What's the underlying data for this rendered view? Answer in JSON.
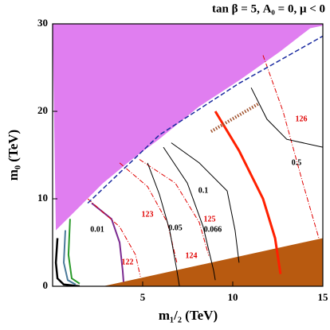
{
  "chart_data": {
    "type": "contour",
    "title": "tan β = 5, A₀ = 0, μ < 0",
    "x_label": "m₁/₂ (TeV)",
    "y_label": "m₀ (TeV)",
    "xlim": [
      0,
      15
    ],
    "ylim": [
      0,
      30
    ],
    "xticks": [
      5,
      10,
      15
    ],
    "yticks": [
      0,
      10,
      20,
      30
    ],
    "regions": [
      {
        "color": "#e07ef0",
        "x": [
          0,
          0.18,
          1.5,
          2.8,
          4.4,
          5.9,
          8.1,
          10.4,
          12.6,
          14.3,
          15,
          15,
          0
        ],
        "y": [
          30,
          6.4,
          9.1,
          11.8,
          14.5,
          16.8,
          20.5,
          23.6,
          26.8,
          29.5,
          29.8,
          30,
          30
        ]
      },
      {
        "color": "#b85a10",
        "x": [
          2.8,
          15,
          15
        ],
        "y": [
          0,
          5.5,
          0
        ]
      }
    ],
    "series": [
      {
        "color": "#000000",
        "style": "solid",
        "width": 2.5,
        "x": [
          0.27,
          0.18,
          0.27,
          0.62,
          1.5
        ],
        "y": [
          5.5,
          2.7,
          0.9,
          0.2,
          0
        ]
      },
      {
        "color": "#4a7a9a",
        "style": "solid",
        "width": 2,
        "x": [
          0.71,
          0.62,
          0.84,
          1.28
        ],
        "y": [
          6.4,
          2.7,
          0.7,
          0.2
        ]
      },
      {
        "color": "#2a9a2a",
        "style": "solid",
        "width": 2,
        "x": [
          0.97,
          0.88,
          1.06,
          1.5
        ],
        "y": [
          7.7,
          3.6,
          0.9,
          0.3
        ]
      },
      {
        "name": "0.01",
        "label_color": "#000000",
        "color": "#7a2a90",
        "style": "solid",
        "width": 2,
        "x": [
          2.17,
          3.27,
          3.72,
          3.89,
          3.94
        ],
        "y": [
          9.5,
          7.7,
          5.0,
          1.8,
          0.5
        ]
      },
      {
        "name": "122",
        "label_color": "#e00000",
        "color": "#e00000",
        "style": "dashdot",
        "width": 1,
        "x": [
          1.95,
          3.72,
          4.6,
          4.87
        ],
        "y": [
          10,
          6.8,
          3.6,
          1.1
        ]
      },
      {
        "name": "123",
        "label_color": "#e00000",
        "color": "#e00000",
        "style": "dashdot",
        "width": 1,
        "x": [
          3.72,
          5.27,
          6.37,
          6.9
        ],
        "y": [
          14.1,
          11.4,
          7.3,
          2.7
        ]
      },
      {
        "name": "124",
        "label_color": "#e00000",
        "color": "#e00000",
        "style": "dashdot",
        "width": 1,
        "x": [
          4.82,
          6.81,
          8.14,
          8.67
        ],
        "y": [
          14.5,
          11.8,
          7.3,
          3.5
        ]
      },
      {
        "name": "125",
        "label_color": "#e00000",
        "color": "#ff2000",
        "style": "solid",
        "width": 3,
        "x": [
          9.03,
          10.35,
          11.68,
          12.35,
          12.65
        ],
        "y": [
          20,
          15.5,
          10,
          5.5,
          1.4
        ]
      },
      {
        "name": "126",
        "label_color": "#e00000",
        "color": "#e00000",
        "style": "dashdot",
        "width": 1,
        "x": [
          11.68,
          12.79,
          13.89,
          14.78
        ],
        "y": [
          26.4,
          20,
          11.8,
          5.5
        ]
      },
      {
        "name": "0.05",
        "label_color": "#000000",
        "color": "#000000",
        "style": "solid",
        "width": 1,
        "x": [
          5.27,
          5.93,
          6.5,
          6.9,
          7.04
        ],
        "y": [
          14.1,
          10.5,
          6.4,
          1.8,
          0
        ]
      },
      {
        "name": "0.066",
        "label_color": "#000000",
        "color": "#000000",
        "style": "solid",
        "width": 1,
        "x": [
          6.15,
          7.48,
          8.36,
          8.94,
          9.03
        ],
        "y": [
          15.9,
          11.8,
          6.8,
          1.8,
          0.7
        ]
      },
      {
        "name": "0.1",
        "label_color": "#000000",
        "color": "#000000",
        "style": "solid",
        "width": 1,
        "x": [
          6.59,
          8.14,
          9.69,
          10.13,
          10.35
        ],
        "y": [
          16.4,
          14.1,
          10.9,
          6.4,
          2.7
        ]
      },
      {
        "name": "0.5",
        "label_color": "#000000",
        "color": "#000000",
        "style": "solid",
        "width": 1,
        "x": [
          11.02,
          11.9,
          13.0,
          15
        ],
        "y": [
          22.7,
          19.1,
          16.8,
          15.9
        ]
      },
      {
        "color": "#a0522d",
        "style": "dotted",
        "width": 4,
        "x": [
          8.8,
          11.46
        ],
        "y": [
          17.7,
          20.9
        ]
      },
      {
        "color": "#1a2aa0",
        "style": "dashed",
        "width": 1.5,
        "x": [
          1.95,
          5.93,
          10.35,
          15
        ],
        "y": [
          9.5,
          17.3,
          23.2,
          28.6
        ]
      }
    ]
  }
}
